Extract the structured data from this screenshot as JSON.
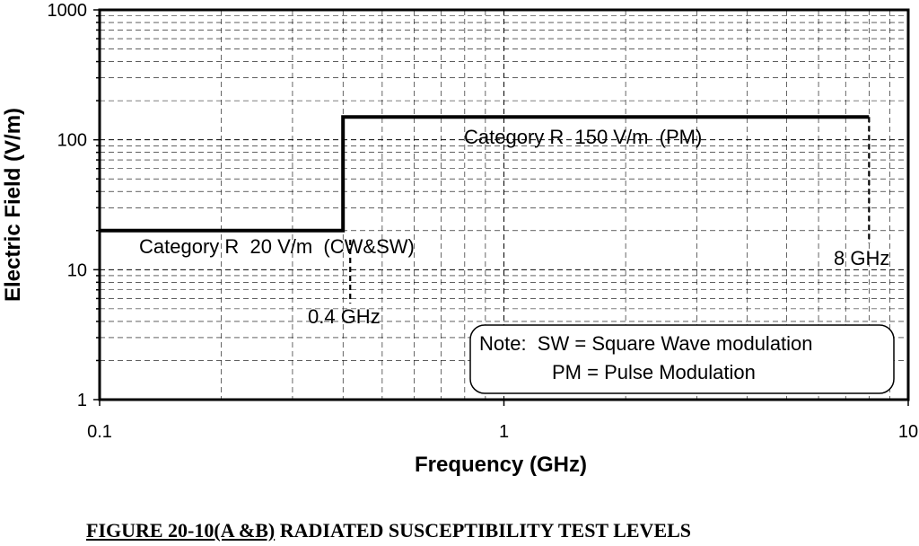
{
  "chart_data": {
    "type": "line",
    "xlabel": "Frequency (GHz)",
    "ylabel": "Electric Field (V/m)",
    "xscale": "log",
    "yscale": "log",
    "xlim": [
      0.1,
      10
    ],
    "ylim": [
      1,
      1000
    ],
    "x_ticks": [
      "0.1",
      "1",
      "10"
    ],
    "y_ticks": [
      "1",
      "10",
      "100",
      "1000"
    ],
    "grid": true,
    "series": [
      {
        "x": [
          0.1,
          0.4,
          0.4,
          8
        ],
        "y": [
          20,
          20,
          150,
          150
        ],
        "color": "#000000"
      }
    ],
    "markers": [
      {
        "x": 0.4,
        "label": "0.4 GHz"
      },
      {
        "x": 8,
        "label": "8 GHz"
      }
    ],
    "annotations": [
      {
        "text": "Category R  150 V/m  (PM)"
      },
      {
        "text": "Category R  20 V/m  (CW&SW)"
      }
    ],
    "note": {
      "line1": "Note:  SW = Square Wave modulation",
      "line2": "PM = Pulse Modulation"
    }
  },
  "caption": {
    "prefix": "FIGURE 20-10(A &B)",
    "rest": " RADIATED SUSCEPTIBILITY TEST LEVELS"
  }
}
